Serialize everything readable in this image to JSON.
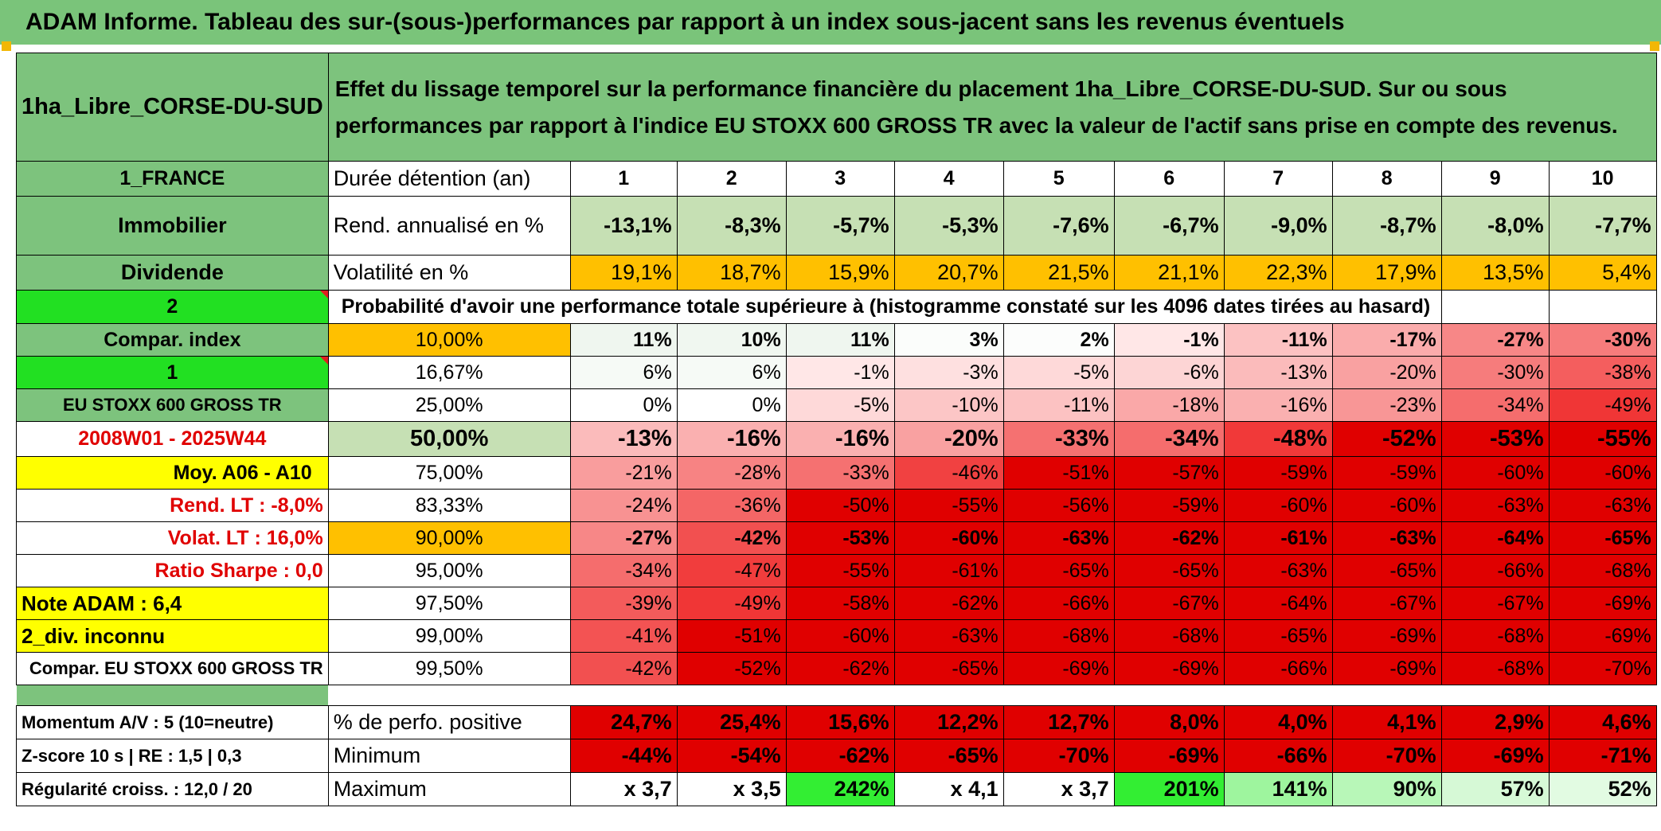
{
  "title": "ADAM Informe. Tableau des sur-(sous-)performances par rapport à un index sous-jacent sans les revenus éventuels",
  "asset_name": "1ha_Libre_CORSE-DU-SUD",
  "description": "Effet du lissage temporel sur la performance financière du placement 1ha_Libre_CORSE-DU-SUD. Sur ou sous performances par rapport à l'indice EU STOXX 600 GROSS TR avec la valeur de l'actif sans prise en compte des revenus.",
  "sidebar": {
    "country": "1_FRANCE",
    "category": "Immobilier",
    "dividend": "Dividende",
    "index_choice": "2",
    "compar_index": "Compar. index",
    "compar_choice": "1",
    "index_name": "EU STOXX 600 GROSS TR",
    "period": "2008W01 - 2025W44",
    "avg": "Moy. A06 - A10",
    "rend_lt": "Rend. LT :    -8,0%",
    "volat_lt": "Volat. LT :    16,0%",
    "sharpe": "Ratio Sharpe :    0,0",
    "note": "Note ADAM : 6,4",
    "div": "2_div. inconnu",
    "compar_name": "Compar. EU STOXX 600 GROSS TR",
    "momentum": "Momentum A/V : 5 (10=neutre)",
    "zscore": "Z-score 10 s | RE : 1,5 | 0,3",
    "regularite": "Régularité croiss. : 12,0 / 20"
  },
  "header": {
    "duration_label": "Durée détention (an)",
    "years": [
      "1",
      "2",
      "3",
      "4",
      "5",
      "6",
      "7",
      "8",
      "9",
      "10"
    ],
    "rend_label": "Rend. annualisé en %",
    "rend": [
      "-13,1%",
      "-8,3%",
      "-5,7%",
      "-5,3%",
      "-7,6%",
      "-6,7%",
      "-9,0%",
      "-8,7%",
      "-8,0%",
      "-7,7%"
    ],
    "vol_label": "Volatilité en %",
    "vol": [
      "19,1%",
      "18,7%",
      "15,9%",
      "20,7%",
      "21,5%",
      "21,1%",
      "22,3%",
      "17,9%",
      "13,5%",
      "5,4%"
    ],
    "prob_label": "Probabilité d'avoir une performance totale supérieure à (histogramme constaté sur les 4096 dates tirées au hasard)"
  },
  "quantiles": [
    {
      "q": "10,00%",
      "vals": [
        "11%",
        "10%",
        "11%",
        "3%",
        "2%",
        "-1%",
        "-11%",
        "-17%",
        "-27%",
        "-30%"
      ],
      "bold": true
    },
    {
      "q": "16,67%",
      "vals": [
        "6%",
        "6%",
        "-1%",
        "-3%",
        "-5%",
        "-6%",
        "-13%",
        "-20%",
        "-30%",
        "-38%"
      ],
      "bold": false
    },
    {
      "q": "25,00%",
      "vals": [
        "0%",
        "0%",
        "-5%",
        "-10%",
        "-11%",
        "-18%",
        "-16%",
        "-23%",
        "-34%",
        "-49%"
      ],
      "bold": false
    },
    {
      "q": "50,00%",
      "vals": [
        "-13%",
        "-16%",
        "-16%",
        "-20%",
        "-33%",
        "-34%",
        "-48%",
        "-52%",
        "-53%",
        "-55%"
      ],
      "bold": true,
      "big": true
    },
    {
      "q": "75,00%",
      "vals": [
        "-21%",
        "-28%",
        "-33%",
        "-46%",
        "-51%",
        "-57%",
        "-59%",
        "-59%",
        "-60%",
        "-60%"
      ],
      "bold": false
    },
    {
      "q": "83,33%",
      "vals": [
        "-24%",
        "-36%",
        "-50%",
        "-55%",
        "-56%",
        "-59%",
        "-60%",
        "-60%",
        "-63%",
        "-63%"
      ],
      "bold": false
    },
    {
      "q": "90,00%",
      "vals": [
        "-27%",
        "-42%",
        "-53%",
        "-60%",
        "-63%",
        "-62%",
        "-61%",
        "-63%",
        "-64%",
        "-65%"
      ],
      "bold": true
    },
    {
      "q": "95,00%",
      "vals": [
        "-34%",
        "-47%",
        "-55%",
        "-61%",
        "-65%",
        "-65%",
        "-63%",
        "-65%",
        "-66%",
        "-68%"
      ],
      "bold": false
    },
    {
      "q": "97,50%",
      "vals": [
        "-39%",
        "-49%",
        "-58%",
        "-62%",
        "-66%",
        "-67%",
        "-64%",
        "-67%",
        "-67%",
        "-69%"
      ],
      "bold": false
    },
    {
      "q": "99,00%",
      "vals": [
        "-41%",
        "-51%",
        "-60%",
        "-63%",
        "-68%",
        "-68%",
        "-65%",
        "-69%",
        "-68%",
        "-69%"
      ],
      "bold": false
    },
    {
      "q": "99,50%",
      "vals": [
        "-42%",
        "-52%",
        "-62%",
        "-65%",
        "-69%",
        "-69%",
        "-66%",
        "-69%",
        "-68%",
        "-70%"
      ],
      "bold": false
    }
  ],
  "stats": {
    "pos_label": "% de perfo. positive",
    "pos": [
      "24,7%",
      "25,4%",
      "15,6%",
      "12,2%",
      "12,7%",
      "8,0%",
      "4,0%",
      "4,1%",
      "2,9%",
      "4,6%"
    ],
    "min_label": "Minimum",
    "min": [
      "-44%",
      "-54%",
      "-62%",
      "-65%",
      "-70%",
      "-69%",
      "-66%",
      "-70%",
      "-69%",
      "-71%"
    ],
    "max_label": "Maximum",
    "max": [
      "x 3,7",
      "x 3,5",
      "242%",
      "x 4,1",
      "x 3,7",
      "201%",
      "141%",
      "90%",
      "57%",
      "52%"
    ]
  },
  "colors": {
    "title_green": "#7ac47a",
    "label_green": "#7dc37d",
    "bright_green": "#22e022",
    "yellow": "#ffff00",
    "orange": "#ffc000",
    "light_green": "#c6e0b4",
    "red": "#e00000",
    "label_red": "#e00000"
  }
}
